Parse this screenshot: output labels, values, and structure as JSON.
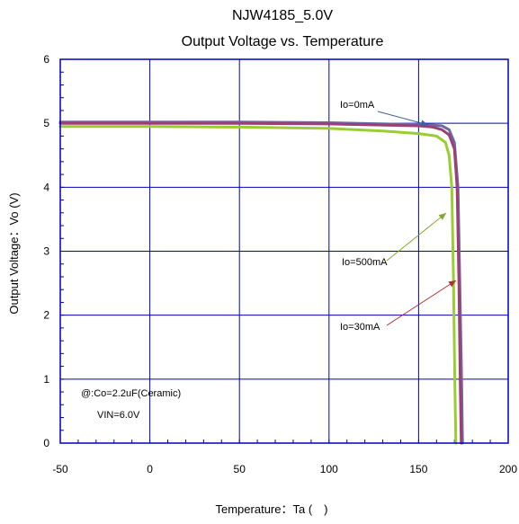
{
  "chart_data": {
    "type": "line",
    "title": "NJW4185_5.0V",
    "subtitle": "Output Voltage vs. Temperature",
    "xlabel": "Temperature：Ta (　)",
    "ylabel": "Output Voltage：Vo (V)",
    "xlim": [
      -50,
      200
    ],
    "ylim": [
      0,
      6
    ],
    "xticks": [
      "-50",
      "0",
      "50",
      "100",
      "150",
      "200"
    ],
    "yticks": [
      "0",
      "1",
      "2",
      "3",
      "4",
      "5",
      "6"
    ],
    "grid": true,
    "series": [
      {
        "name": "Io=0mA",
        "color": "#6a6aa8",
        "x": [
          -50,
          0,
          50,
          100,
          150,
          158,
          163,
          167,
          170,
          172,
          173,
          174,
          174.5
        ],
        "y": [
          5.02,
          5.02,
          5.02,
          5.01,
          4.98,
          4.97,
          4.96,
          4.9,
          4.7,
          4.0,
          2.5,
          1.0,
          0
        ]
      },
      {
        "name": "Io=30mA",
        "color": "#9b3f74",
        "x": [
          -50,
          0,
          50,
          100,
          150,
          158,
          163,
          167,
          170,
          171.5,
          172.5,
          173.2,
          173.8
        ],
        "y": [
          5.0,
          5.0,
          5.0,
          4.99,
          4.96,
          4.94,
          4.9,
          4.82,
          4.6,
          4.0,
          2.5,
          1.0,
          0
        ]
      },
      {
        "name": "Io=500mA",
        "color": "#9acd32",
        "x": [
          -50,
          0,
          50,
          100,
          130,
          150,
          160,
          165,
          167,
          168.5,
          169.5,
          170.2,
          170.8
        ],
        "y": [
          4.95,
          4.95,
          4.94,
          4.92,
          4.88,
          4.84,
          4.8,
          4.7,
          4.5,
          4.0,
          2.5,
          1.0,
          0
        ]
      }
    ],
    "annotations": [
      {
        "text": "Io=0mA",
        "arrow_color": "#4060a0"
      },
      {
        "text": "Io=500mA",
        "arrow_color": "#7fa830"
      },
      {
        "text": "Io=30mA",
        "arrow_color": "#b03030"
      },
      {
        "text": "@:Co=2.2uF(Ceramic)"
      },
      {
        "text": "VIN=6.0V"
      }
    ],
    "colors": {
      "grid": "#0000c0",
      "axis": "#0000c0"
    }
  }
}
